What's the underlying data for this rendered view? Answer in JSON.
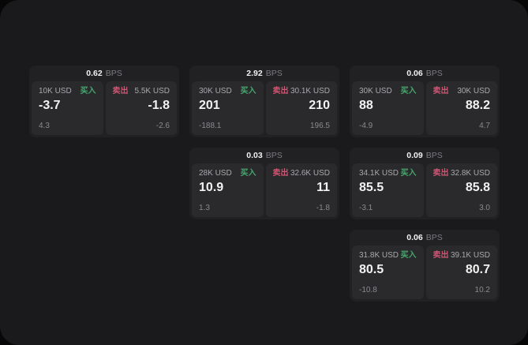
{
  "window": {
    "background_outer": "#070708",
    "background_panel": "#1a1a1c",
    "card_background": "#212123",
    "tile_background": "#2a2a2c"
  },
  "colors": {
    "buy_green": "#46a86e",
    "sell_rose": "#cf5572",
    "value_white": "#f2f2f2",
    "label_gray": "#a9a9ad",
    "muted_gray": "#8a8a8e",
    "bps_gray": "#7d7d81"
  },
  "labels": {
    "buy": "买入",
    "sell": "卖出",
    "bps_unit": "BPS"
  },
  "cards": [
    {
      "row": 1,
      "col": 1,
      "bps": "0.62",
      "buy": {
        "amount": "10K USD",
        "value": "-3.7",
        "secondary": "4.3"
      },
      "sell": {
        "amount": "5.5K USD",
        "value": "-1.8",
        "secondary": "-2.6"
      }
    },
    {
      "row": 1,
      "col": 2,
      "bps": "2.92",
      "buy": {
        "amount": "30K USD",
        "value": "201",
        "secondary": "-188.1"
      },
      "sell": {
        "amount": "30.1K USD",
        "value": "210",
        "secondary": "196.5"
      }
    },
    {
      "row": 1,
      "col": 3,
      "bps": "0.06",
      "buy": {
        "amount": "30K USD",
        "value": "88",
        "secondary": "-4.9"
      },
      "sell": {
        "amount": "30K USD",
        "value": "88.2",
        "secondary": "4.7"
      }
    },
    {
      "row": 2,
      "col": 2,
      "bps": "0.03",
      "buy": {
        "amount": "28K USD",
        "value": "10.9",
        "secondary": "1.3"
      },
      "sell": {
        "amount": "32.6K USD",
        "value": "11",
        "secondary": "-1.8"
      }
    },
    {
      "row": 2,
      "col": 3,
      "bps": "0.09",
      "buy": {
        "amount": "34.1K USD",
        "value": "85.5",
        "secondary": "-3.1"
      },
      "sell": {
        "amount": "32.8K USD",
        "value": "85.8",
        "secondary": "3.0"
      }
    },
    {
      "row": 3,
      "col": 3,
      "bps": "0.06",
      "buy": {
        "amount": "31.8K USD",
        "value": "80.5",
        "secondary": "-10.8"
      },
      "sell": {
        "amount": "39.1K USD",
        "value": "80.7",
        "secondary": "10.2"
      }
    }
  ]
}
